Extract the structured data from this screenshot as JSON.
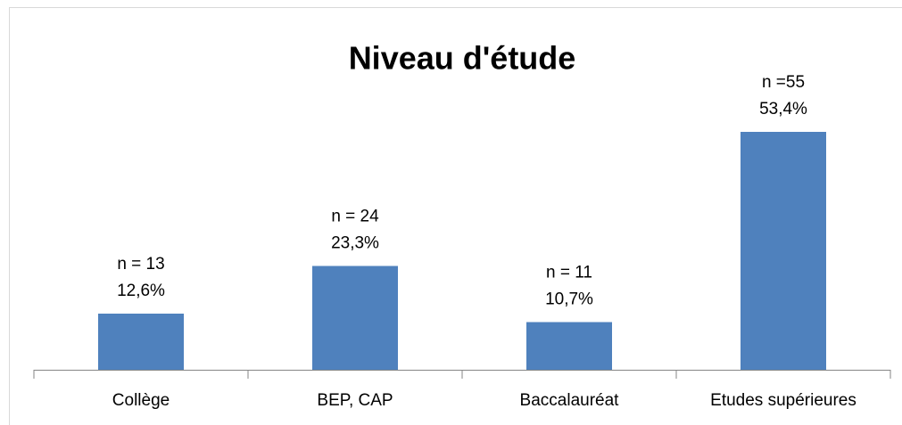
{
  "chart_data": {
    "type": "bar",
    "title": "Niveau d'étude",
    "categories": [
      "Collège",
      "BEP, CAP",
      "Baccalauréat",
      "Etudes supérieures"
    ],
    "values": [
      12.6,
      23.3,
      10.7,
      53.4
    ],
    "value_labels": [
      "12,6%",
      "23,3%",
      "10,7%",
      "53,4%"
    ],
    "counts": [
      13,
      24,
      11,
      55
    ],
    "count_labels": [
      "n = 13",
      "n = 24",
      "n = 11",
      "n =55"
    ],
    "color": "#4f81bd",
    "ylim": [
      0,
      60
    ]
  }
}
